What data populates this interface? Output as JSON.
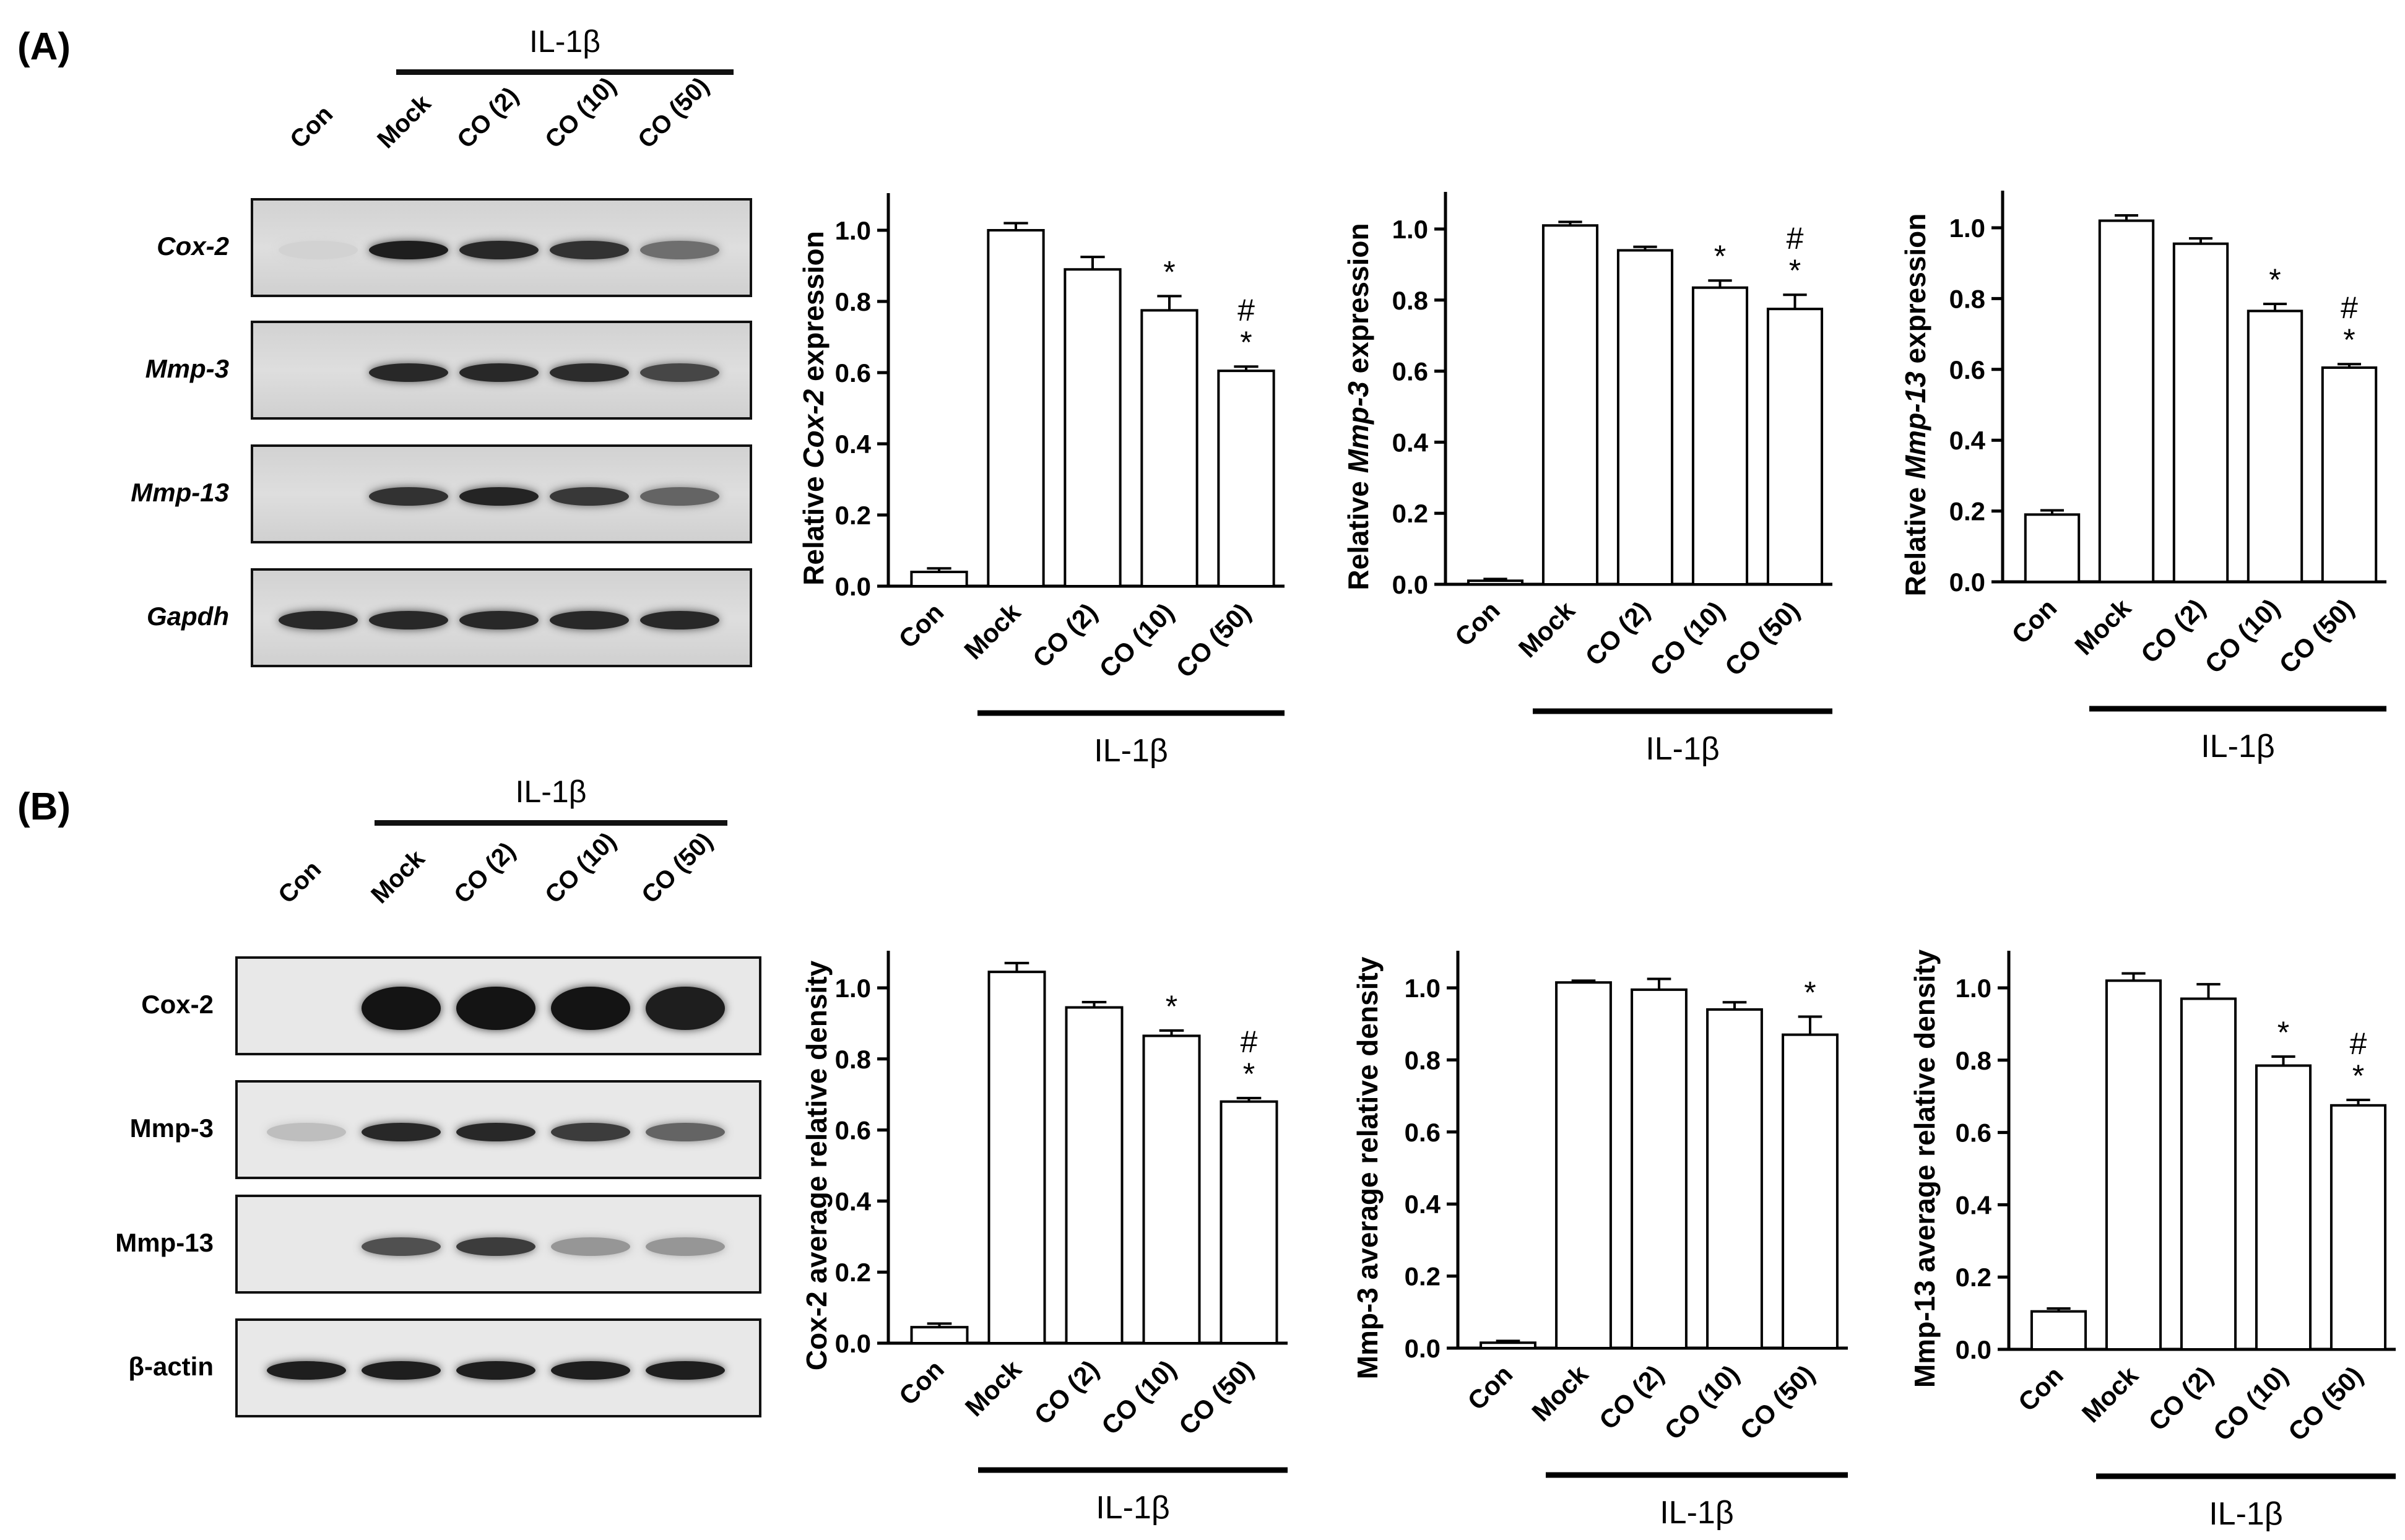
{
  "panels": [
    {
      "label": "(A)",
      "treatment": "IL-1β",
      "lanes": [
        "Con",
        "Mock",
        "CO (2)",
        "CO (10)",
        "CO (50)"
      ],
      "rows": [
        {
          "name": "Cox-2",
          "intensity": [
            0.05,
            0.95,
            0.9,
            0.85,
            0.55
          ]
        },
        {
          "name": "Mmp-3",
          "intensity": [
            0.0,
            0.9,
            0.9,
            0.88,
            0.75
          ]
        },
        {
          "name": "Mmp-13",
          "intensity": [
            0.0,
            0.85,
            0.92,
            0.82,
            0.6
          ]
        },
        {
          "name": "Gapdh",
          "intensity": [
            0.9,
            0.9,
            0.9,
            0.9,
            0.9
          ]
        }
      ]
    },
    {
      "label": "(B)",
      "treatment": "IL-1β",
      "lanes": [
        "Con",
        "Mock",
        "CO (2)",
        "CO (10)",
        "CO (50)"
      ],
      "rows": [
        {
          "name": "Cox-2",
          "intensity": [
            0.0,
            1.0,
            1.0,
            1.0,
            0.95
          ]
        },
        {
          "name": "Mmp-3",
          "intensity": [
            0.15,
            0.9,
            0.9,
            0.8,
            0.6
          ]
        },
        {
          "name": "Mmp-13",
          "intensity": [
            0.0,
            0.7,
            0.8,
            0.35,
            0.35
          ]
        },
        {
          "name": "β-actin",
          "intensity": [
            0.95,
            0.95,
            0.95,
            0.95,
            0.95
          ]
        }
      ]
    }
  ],
  "chart_data": [
    {
      "type": "bar",
      "panel": "A",
      "categories": [
        "Con",
        "Mock",
        "CO (2)",
        "CO (10)",
        "CO (50)"
      ],
      "values": [
        0.04,
        1.0,
        0.89,
        0.775,
        0.605
      ],
      "errors": [
        0.01,
        0.02,
        0.035,
        0.04,
        0.012
      ],
      "annotations": [
        "",
        "",
        "",
        "*",
        "#\n*"
      ],
      "ylabel_prefix": "Relative ",
      "ylabel_gene": "Cox-2",
      "ylabel_suffix": " expression",
      "ylim": [
        0,
        1.0
      ],
      "yticks": [
        "0.0",
        "0.2",
        "0.4",
        "0.6",
        "0.8",
        "1.0"
      ],
      "treatment": "IL-1β"
    },
    {
      "type": "bar",
      "panel": "A",
      "categories": [
        "Con",
        "Mock",
        "CO (2)",
        "CO (10)",
        "CO (50)"
      ],
      "values": [
        0.01,
        1.01,
        0.94,
        0.835,
        0.775
      ],
      "errors": [
        0.005,
        0.01,
        0.01,
        0.02,
        0.04
      ],
      "annotations": [
        "",
        "",
        "",
        "*",
        "#\n*"
      ],
      "ylabel_prefix": "Relative ",
      "ylabel_gene": "Mmp-3",
      "ylabel_suffix": " expression",
      "ylim": [
        0,
        1.0
      ],
      "yticks": [
        "0.0",
        "0.2",
        "0.4",
        "0.6",
        "0.8",
        "1.0"
      ],
      "treatment": "IL-1β"
    },
    {
      "type": "bar",
      "panel": "A",
      "categories": [
        "Con",
        "Mock",
        "CO (2)",
        "CO (10)",
        "CO (50)"
      ],
      "values": [
        0.19,
        1.02,
        0.955,
        0.765,
        0.605
      ],
      "errors": [
        0.012,
        0.015,
        0.015,
        0.02,
        0.01
      ],
      "annotations": [
        "",
        "",
        "",
        "*",
        "#\n*"
      ],
      "ylabel_prefix": "Relative ",
      "ylabel_gene": "Mmp-13",
      "ylabel_suffix": " expression",
      "ylim": [
        0,
        1.0
      ],
      "yticks": [
        "0.0",
        "0.2",
        "0.4",
        "0.6",
        "0.8",
        "1.0"
      ],
      "treatment": "IL-1β"
    },
    {
      "type": "bar",
      "panel": "B",
      "categories": [
        "Con",
        "Mock",
        "CO (2)",
        "CO (10)",
        "CO (50)"
      ],
      "values": [
        0.045,
        1.045,
        0.945,
        0.865,
        0.68
      ],
      "errors": [
        0.01,
        0.025,
        0.015,
        0.015,
        0.01
      ],
      "annotations": [
        "",
        "",
        "",
        "*",
        "#\n*"
      ],
      "ylabel_prefix": "",
      "ylabel_gene": "",
      "ylabel_suffix": "Cox-2 average relative density",
      "ylim": [
        0,
        1.0
      ],
      "yticks": [
        "0.0",
        "0.2",
        "0.4",
        "0.6",
        "0.8",
        "1.0"
      ],
      "treatment": "IL-1β"
    },
    {
      "type": "bar",
      "panel": "B",
      "categories": [
        "Con",
        "Mock",
        "CO (2)",
        "CO (10)",
        "CO (50)"
      ],
      "values": [
        0.015,
        1.015,
        0.995,
        0.94,
        0.87
      ],
      "errors": [
        0.005,
        0.005,
        0.03,
        0.02,
        0.05
      ],
      "annotations": [
        "",
        "",
        "",
        "",
        "*"
      ],
      "ylabel_prefix": "",
      "ylabel_gene": "",
      "ylabel_suffix": "Mmp-3 average relative density",
      "ylim": [
        0,
        1.0
      ],
      "yticks": [
        "0.0",
        "0.2",
        "0.4",
        "0.6",
        "0.8",
        "1.0"
      ],
      "treatment": "IL-1β"
    },
    {
      "type": "bar",
      "panel": "B",
      "categories": [
        "Con",
        "Mock",
        "CO (2)",
        "CO (10)",
        "CO (50)"
      ],
      "values": [
        0.105,
        1.02,
        0.97,
        0.785,
        0.675
      ],
      "errors": [
        0.008,
        0.02,
        0.04,
        0.025,
        0.015
      ],
      "annotations": [
        "",
        "",
        "",
        "*",
        "#\n*"
      ],
      "ylabel_prefix": "",
      "ylabel_gene": "",
      "ylabel_suffix": "Mmp-13 average relative density",
      "ylim": [
        0,
        1.0
      ],
      "yticks": [
        "0.0",
        "0.2",
        "0.4",
        "0.6",
        "0.8",
        "1.0"
      ],
      "treatment": "IL-1β"
    }
  ]
}
